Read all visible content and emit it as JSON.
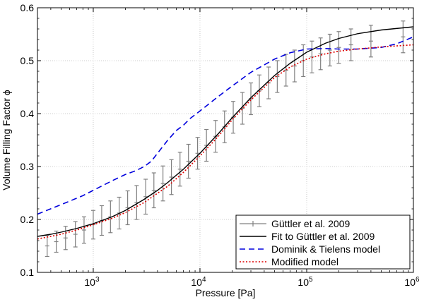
{
  "chart_data": {
    "type": "line",
    "title": "",
    "xlabel": "Pressure [Pa]",
    "ylabel": "Volume Filling Factor ϕ",
    "xscale": "log",
    "xlim": [
      300,
      1000000
    ],
    "ylim": [
      0.1,
      0.6
    ],
    "grid": true,
    "legend_position": "bottom-right",
    "x_ticks": [
      {
        "value": 1000,
        "base": "10",
        "exp": "3"
      },
      {
        "value": 10000,
        "base": "10",
        "exp": "4"
      },
      {
        "value": 100000,
        "base": "10",
        "exp": "5"
      },
      {
        "value": 1000000,
        "base": "10",
        "exp": "6"
      }
    ],
    "y_ticks": [
      {
        "value": 0.1,
        "label": "0.1"
      },
      {
        "value": 0.2,
        "label": "0.2"
      },
      {
        "value": 0.3,
        "label": "0.3"
      },
      {
        "value": 0.4,
        "label": "0.4"
      },
      {
        "value": 0.5,
        "label": "0.5"
      },
      {
        "value": 0.6,
        "label": "0.6"
      }
    ],
    "series": [
      {
        "name": "Güttler et al. 2009",
        "kind": "errorbar",
        "color": "#808080",
        "points": [
          {
            "x": 370,
            "y": 0.15,
            "err": 0.02
          },
          {
            "x": 450,
            "y": 0.158,
            "err": 0.02
          },
          {
            "x": 550,
            "y": 0.165,
            "err": 0.022
          },
          {
            "x": 680,
            "y": 0.172,
            "err": 0.024
          },
          {
            "x": 820,
            "y": 0.18,
            "err": 0.025
          },
          {
            "x": 1000,
            "y": 0.19,
            "err": 0.027
          },
          {
            "x": 1200,
            "y": 0.198,
            "err": 0.028
          },
          {
            "x": 1450,
            "y": 0.205,
            "err": 0.03
          },
          {
            "x": 1750,
            "y": 0.212,
            "err": 0.03
          },
          {
            "x": 2100,
            "y": 0.222,
            "err": 0.032
          },
          {
            "x": 2550,
            "y": 0.232,
            "err": 0.032
          },
          {
            "x": 3100,
            "y": 0.243,
            "err": 0.033
          },
          {
            "x": 3700,
            "y": 0.255,
            "err": 0.033
          },
          {
            "x": 4500,
            "y": 0.268,
            "err": 0.033
          },
          {
            "x": 5400,
            "y": 0.28,
            "err": 0.033
          },
          {
            "x": 6500,
            "y": 0.295,
            "err": 0.032
          },
          {
            "x": 7800,
            "y": 0.31,
            "err": 0.032
          },
          {
            "x": 9500,
            "y": 0.325,
            "err": 0.03
          },
          {
            "x": 11500,
            "y": 0.34,
            "err": 0.03
          },
          {
            "x": 14000,
            "y": 0.357,
            "err": 0.03
          },
          {
            "x": 17000,
            "y": 0.375,
            "err": 0.03
          },
          {
            "x": 20500,
            "y": 0.393,
            "err": 0.03
          },
          {
            "x": 25000,
            "y": 0.41,
            "err": 0.03
          },
          {
            "x": 30000,
            "y": 0.428,
            "err": 0.03
          },
          {
            "x": 36000,
            "y": 0.443,
            "err": 0.03
          },
          {
            "x": 44000,
            "y": 0.458,
            "err": 0.03
          },
          {
            "x": 53000,
            "y": 0.47,
            "err": 0.03
          },
          {
            "x": 64000,
            "y": 0.482,
            "err": 0.03
          },
          {
            "x": 77000,
            "y": 0.49,
            "err": 0.03
          },
          {
            "x": 93000,
            "y": 0.5,
            "err": 0.03
          },
          {
            "x": 112000,
            "y": 0.507,
            "err": 0.03
          },
          {
            "x": 135000,
            "y": 0.513,
            "err": 0.03
          },
          {
            "x": 165000,
            "y": 0.52,
            "err": 0.03
          },
          {
            "x": 200000,
            "y": 0.525,
            "err": 0.03
          },
          {
            "x": 260000,
            "y": 0.53,
            "err": 0.03
          },
          {
            "x": 400000,
            "y": 0.537,
            "err": 0.03
          },
          {
            "x": 800000,
            "y": 0.545,
            "err": 0.03
          }
        ]
      },
      {
        "name": "Fit to Güttler et al. 2009",
        "kind": "line",
        "color": "#000000",
        "dash": "none",
        "x": [
          300,
          400,
          500,
          700,
          1000,
          1500,
          2000,
          3000,
          4000,
          5000,
          7000,
          10000,
          15000,
          20000,
          30000,
          50000,
          70000,
          100000,
          150000,
          200000,
          300000,
          500000,
          1000000
        ],
        "y": [
          0.168,
          0.172,
          0.176,
          0.183,
          0.192,
          0.205,
          0.217,
          0.238,
          0.255,
          0.27,
          0.295,
          0.325,
          0.363,
          0.392,
          0.43,
          0.472,
          0.495,
          0.516,
          0.533,
          0.542,
          0.551,
          0.558,
          0.564
        ]
      },
      {
        "name": "Dominik & Tielens model",
        "kind": "line",
        "color": "#0000dd",
        "dash": "8,5",
        "x": [
          300,
          500,
          800,
          1000,
          1500,
          2000,
          2500,
          3000,
          3500,
          4000,
          5000,
          6000,
          7000,
          8000,
          10000,
          15000,
          20000,
          30000,
          50000,
          70000,
          100000,
          150000,
          200000,
          300000,
          500000,
          700000,
          1000000
        ],
        "y": [
          0.21,
          0.228,
          0.245,
          0.255,
          0.273,
          0.285,
          0.292,
          0.3,
          0.31,
          0.325,
          0.35,
          0.368,
          0.378,
          0.39,
          0.405,
          0.433,
          0.452,
          0.478,
          0.503,
          0.515,
          0.522,
          0.523,
          0.522,
          0.522,
          0.525,
          0.532,
          0.545
        ]
      },
      {
        "name": "Modified model",
        "kind": "line",
        "color": "#dd0000",
        "dash": "2,2.5",
        "x": [
          300,
          500,
          700,
          1000,
          1500,
          2000,
          3000,
          5000,
          7000,
          10000,
          15000,
          20000,
          30000,
          50000,
          70000,
          100000,
          150000,
          200000,
          300000,
          500000,
          1000000
        ],
        "y": [
          0.163,
          0.172,
          0.18,
          0.19,
          0.202,
          0.213,
          0.232,
          0.263,
          0.289,
          0.32,
          0.358,
          0.388,
          0.426,
          0.468,
          0.488,
          0.503,
          0.513,
          0.518,
          0.522,
          0.526,
          0.53
        ]
      }
    ]
  }
}
